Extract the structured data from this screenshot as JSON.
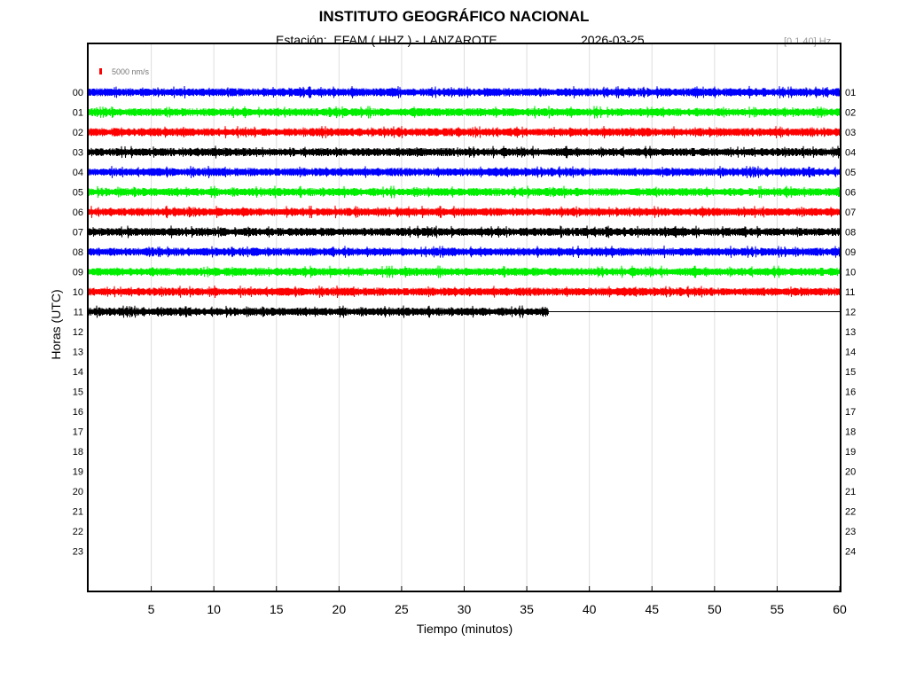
{
  "header": {
    "title": "INSTITUTO GEOGRÁFICO NACIONAL",
    "station": "Estación:  EFAM ( HHZ ) - LANZAROTE",
    "date": "2026-03-25",
    "filter": "[0.1 40] Hz"
  },
  "chart_data": {
    "type": "line",
    "title": "INSTITUTO GEOGRÁFICO NACIONAL",
    "xlabel": "Tiempo (minutos)",
    "ylabel": "Horas (UTC)",
    "xlim": [
      0,
      60
    ],
    "x_ticks": [
      "5",
      "10",
      "15",
      "20",
      "25",
      "30",
      "35",
      "40",
      "45",
      "50",
      "55",
      "60"
    ],
    "left_labels": [
      "00",
      "01",
      "02",
      "03",
      "04",
      "05",
      "06",
      "07",
      "08",
      "09",
      "10",
      "11",
      "12",
      "13",
      "14",
      "15",
      "16",
      "17",
      "18",
      "19",
      "20",
      "21",
      "22",
      "23"
    ],
    "right_labels": [
      "01",
      "02",
      "03",
      "04",
      "05",
      "06",
      "07",
      "08",
      "09",
      "10",
      "11",
      "12",
      "13",
      "14",
      "15",
      "16",
      "17",
      "18",
      "19",
      "20",
      "21",
      "22",
      "23",
      "24"
    ],
    "scale_label": "5000 nm/s",
    "grid": true,
    "trace_colors": [
      "#0000ff",
      "#00ee00",
      "#ff0000",
      "#000000"
    ],
    "scale_color": "#ff0000",
    "series": [
      {
        "hour": "00",
        "end_minute": 60
      },
      {
        "hour": "01",
        "end_minute": 60
      },
      {
        "hour": "02",
        "end_minute": 60
      },
      {
        "hour": "03",
        "end_minute": 60
      },
      {
        "hour": "04",
        "end_minute": 60
      },
      {
        "hour": "05",
        "end_minute": 60
      },
      {
        "hour": "06",
        "end_minute": 60
      },
      {
        "hour": "07",
        "end_minute": 60
      },
      {
        "hour": "08",
        "end_minute": 60
      },
      {
        "hour": "09",
        "end_minute": 60
      },
      {
        "hour": "10",
        "end_minute": 60
      },
      {
        "hour": "11",
        "end_minute": 36.7,
        "flatline_to": 60
      }
    ]
  }
}
